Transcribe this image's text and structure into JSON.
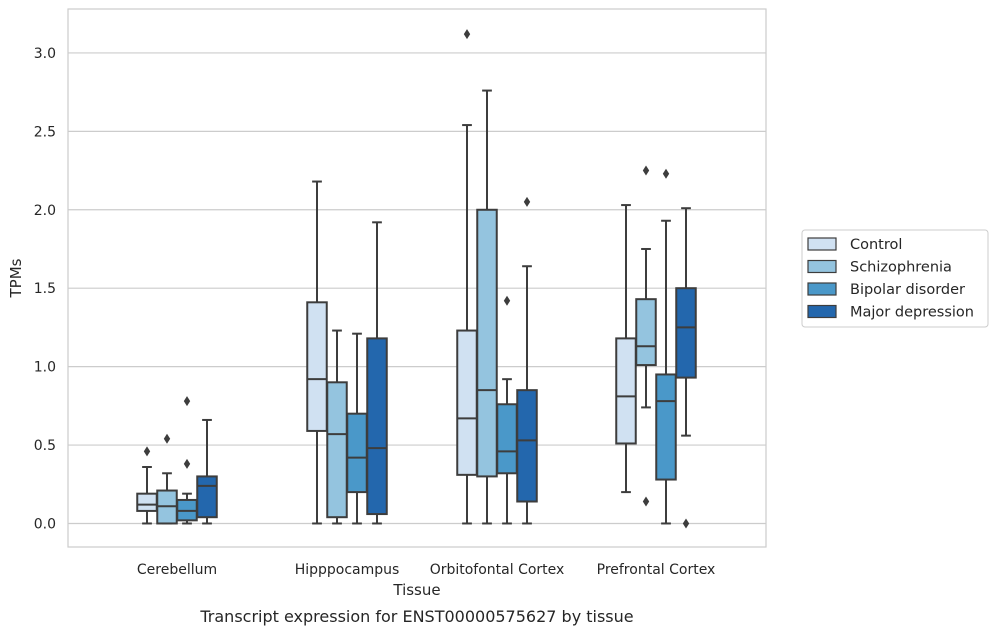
{
  "caption": "Transcript expression for ENST00000575627 by tissue",
  "chart_data": {
    "type": "box",
    "xlabel": "Tissue",
    "ylabel": "TPMs",
    "ylim": [
      -0.15,
      3.28
    ],
    "yticks": [
      0.0,
      0.5,
      1.0,
      1.5,
      2.0,
      2.5,
      3.0
    ],
    "ytick_labels": [
      "0.0",
      "0.5",
      "1.0",
      "1.5",
      "2.0",
      "2.5",
      "3.0"
    ],
    "grid": "horizontal",
    "legend_position": "right",
    "categories": [
      "Cerebellum",
      "Hipppocampus",
      "Orbitofontal Cortex",
      "Prefrontal Cortex"
    ],
    "series": [
      {
        "name": "Control",
        "color": "#d0e1f2",
        "boxes": [
          {
            "whislo": 0.0,
            "q1": 0.08,
            "med": 0.12,
            "q3": 0.19,
            "whishi": 0.36,
            "fliers": [
              0.46
            ]
          },
          {
            "whislo": 0.0,
            "q1": 0.59,
            "med": 0.92,
            "q3": 1.41,
            "whishi": 2.18,
            "fliers": []
          },
          {
            "whislo": 0.0,
            "q1": 0.31,
            "med": 0.67,
            "q3": 1.23,
            "whishi": 2.54,
            "fliers": [
              3.12
            ]
          },
          {
            "whislo": 0.2,
            "q1": 0.51,
            "med": 0.81,
            "q3": 1.18,
            "whishi": 2.03,
            "fliers": []
          }
        ]
      },
      {
        "name": "Schizophrenia",
        "color": "#94c4df",
        "boxes": [
          {
            "whislo": 0.0,
            "q1": 0.0,
            "med": 0.11,
            "q3": 0.21,
            "whishi": 0.32,
            "fliers": [
              0.54
            ]
          },
          {
            "whislo": 0.0,
            "q1": 0.04,
            "med": 0.57,
            "q3": 0.9,
            "whishi": 1.23,
            "fliers": []
          },
          {
            "whislo": 0.0,
            "q1": 0.3,
            "med": 0.85,
            "q3": 2.0,
            "whishi": 2.76,
            "fliers": []
          },
          {
            "whislo": 0.74,
            "q1": 1.01,
            "med": 1.13,
            "q3": 1.43,
            "whishi": 1.75,
            "fliers": [
              2.25,
              0.14
            ]
          }
        ]
      },
      {
        "name": "Bipolar disorder",
        "color": "#4a98c9",
        "boxes": [
          {
            "whislo": 0.0,
            "q1": 0.02,
            "med": 0.08,
            "q3": 0.15,
            "whishi": 0.19,
            "fliers": [
              0.38,
              0.78
            ]
          },
          {
            "whislo": 0.0,
            "q1": 0.2,
            "med": 0.42,
            "q3": 0.7,
            "whishi": 1.21,
            "fliers": []
          },
          {
            "whislo": 0.0,
            "q1": 0.32,
            "med": 0.46,
            "q3": 0.76,
            "whishi": 0.92,
            "fliers": [
              1.42
            ]
          },
          {
            "whislo": 0.0,
            "q1": 0.28,
            "med": 0.78,
            "q3": 0.95,
            "whishi": 1.93,
            "fliers": [
              2.23
            ]
          }
        ]
      },
      {
        "name": "Major depression",
        "color": "#2367ad",
        "boxes": [
          {
            "whislo": 0.0,
            "q1": 0.04,
            "med": 0.24,
            "q3": 0.3,
            "whishi": 0.66,
            "fliers": []
          },
          {
            "whislo": 0.0,
            "q1": 0.06,
            "med": 0.48,
            "q3": 1.18,
            "whishi": 1.92,
            "fliers": []
          },
          {
            "whislo": 0.0,
            "q1": 0.14,
            "med": 0.53,
            "q3": 0.85,
            "whishi": 1.64,
            "fliers": [
              2.05
            ]
          },
          {
            "whislo": 0.56,
            "q1": 0.93,
            "med": 1.25,
            "q3": 1.5,
            "whishi": 2.01,
            "fliers": [
              0.0
            ]
          }
        ]
      }
    ]
  }
}
